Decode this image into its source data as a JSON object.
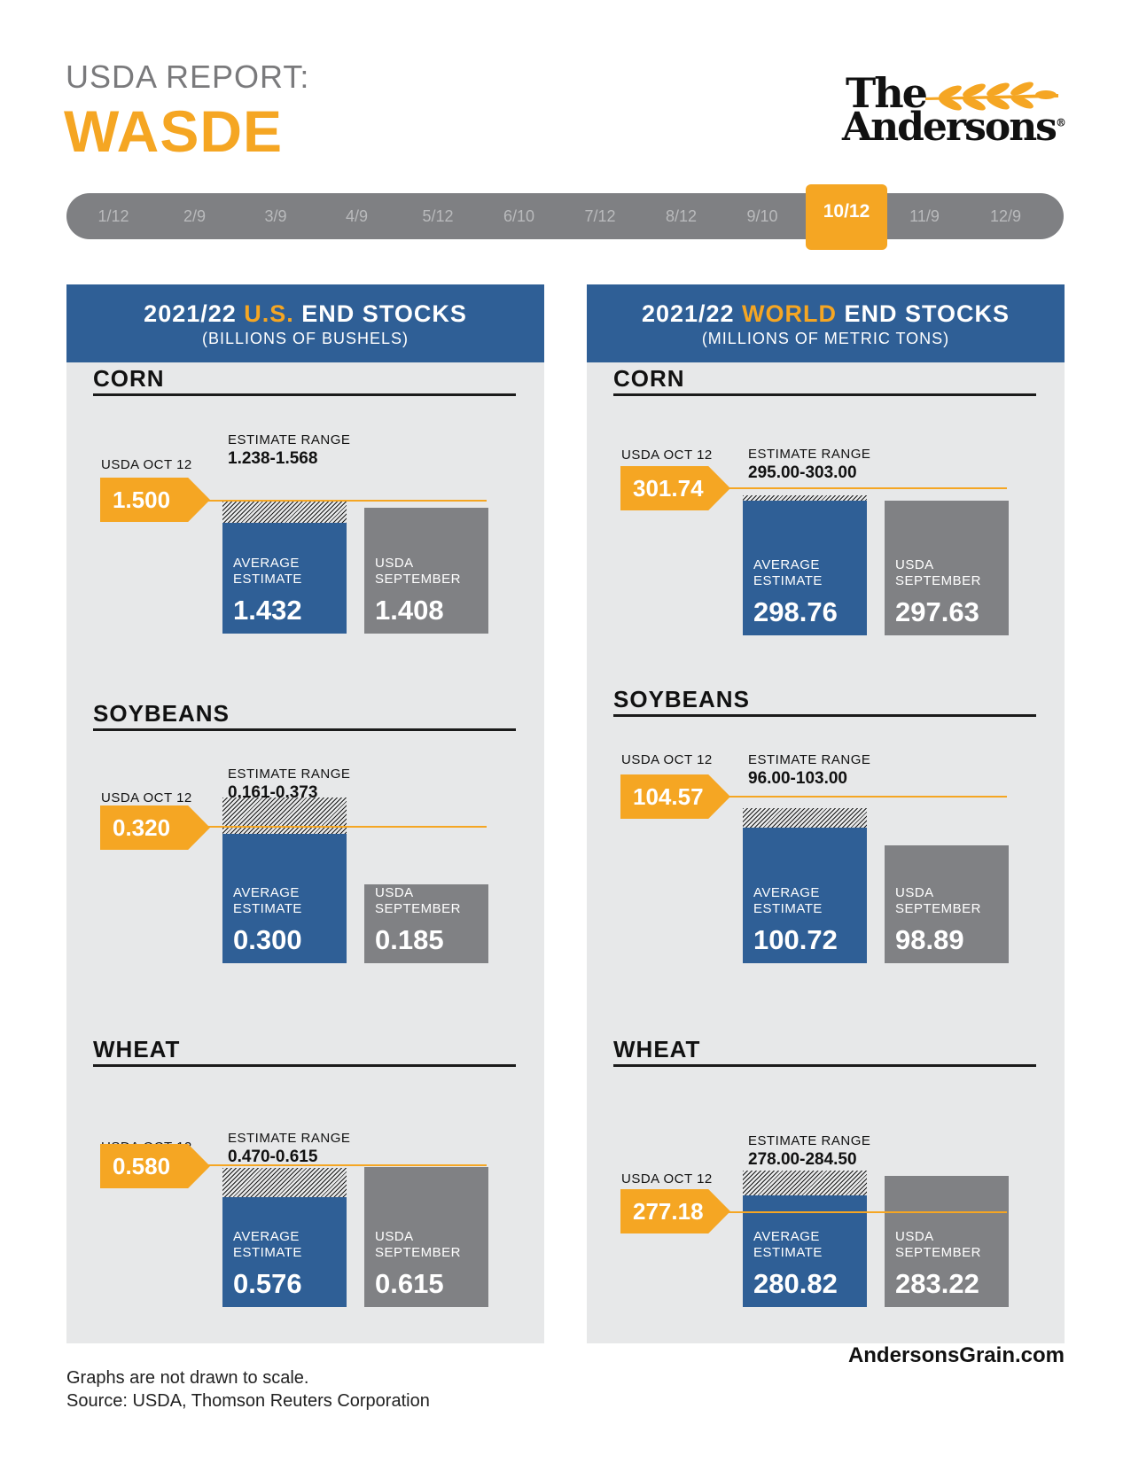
{
  "header": {
    "kicker": "USDA REPORT:",
    "title": "WASDE"
  },
  "logo": {
    "line1": "The",
    "line2": "Andersons",
    "reg": "®"
  },
  "timeline": {
    "dates": [
      "1/12",
      "2/9",
      "3/9",
      "4/9",
      "5/12",
      "6/10",
      "7/12",
      "8/12",
      "9/10",
      "10/12",
      "11/9",
      "12/9"
    ],
    "active": "10/12"
  },
  "colors": {
    "accent": "#f5a623",
    "blue": "#2f5f96",
    "grey": "#808184",
    "panel": "#e7e8e9"
  },
  "panels": [
    {
      "title_pre": "2021/22 ",
      "title_hl": "U.S.",
      "title_post": " END STOCKS",
      "subtitle": "(BILLIONS OF BUSHELS)"
    },
    {
      "title_pre": "2021/22 ",
      "title_hl": "WORLD",
      "title_post": " END STOCKS",
      "subtitle": "(MILLIONS OF METRIC TONS)"
    }
  ],
  "labels": {
    "usda": "USDA OCT 12",
    "range": "ESTIMATE RANGE",
    "avg1": "AVERAGE",
    "avg2": "ESTIMATE",
    "sep1": "USDA",
    "sep2": "SEPTEMBER"
  },
  "chart_data": [
    {
      "type": "bar",
      "title": "2021/22 U.S. END STOCKS",
      "ylabel": "Billions of bushels",
      "crops": [
        {
          "crop": "CORN",
          "usda_oct12": "1.500",
          "estimate_range": "1.238-1.568",
          "range_low": 1.238,
          "range_high": 1.568,
          "average_estimate": "1.432",
          "usda_september": "1.408"
        },
        {
          "crop": "SOYBEANS",
          "usda_oct12": "0.320",
          "estimate_range": "0.161-0.373",
          "range_low": 0.161,
          "range_high": 0.373,
          "average_estimate": "0.300",
          "usda_september": "0.185"
        },
        {
          "crop": "WHEAT",
          "usda_oct12": "0.580",
          "estimate_range": "0.470-0.615",
          "range_low": 0.47,
          "range_high": 0.615,
          "average_estimate": "0.576",
          "usda_september": "0.615"
        }
      ]
    },
    {
      "type": "bar",
      "title": "2021/22 WORLD END STOCKS",
      "ylabel": "Millions of metric tons",
      "crops": [
        {
          "crop": "CORN",
          "usda_oct12": "301.74",
          "estimate_range": "295.00-303.00",
          "range_low": 295.0,
          "range_high": 303.0,
          "average_estimate": "298.76",
          "usda_september": "297.63"
        },
        {
          "crop": "SOYBEANS",
          "usda_oct12": "104.57",
          "estimate_range": "96.00-103.00",
          "range_low": 96.0,
          "range_high": 103.0,
          "average_estimate": "100.72",
          "usda_september": "98.89"
        },
        {
          "crop": "WHEAT",
          "usda_oct12": "277.18",
          "estimate_range": "278.00-284.50",
          "range_low": 278.0,
          "range_high": 284.5,
          "average_estimate": "280.82",
          "usda_september": "283.22"
        }
      ]
    }
  ],
  "footer": {
    "note": "Graphs are not drawn to scale.",
    "source": "Source: USDA, Thomson Reuters Corporation",
    "site": "AndersonsGrain.com"
  }
}
